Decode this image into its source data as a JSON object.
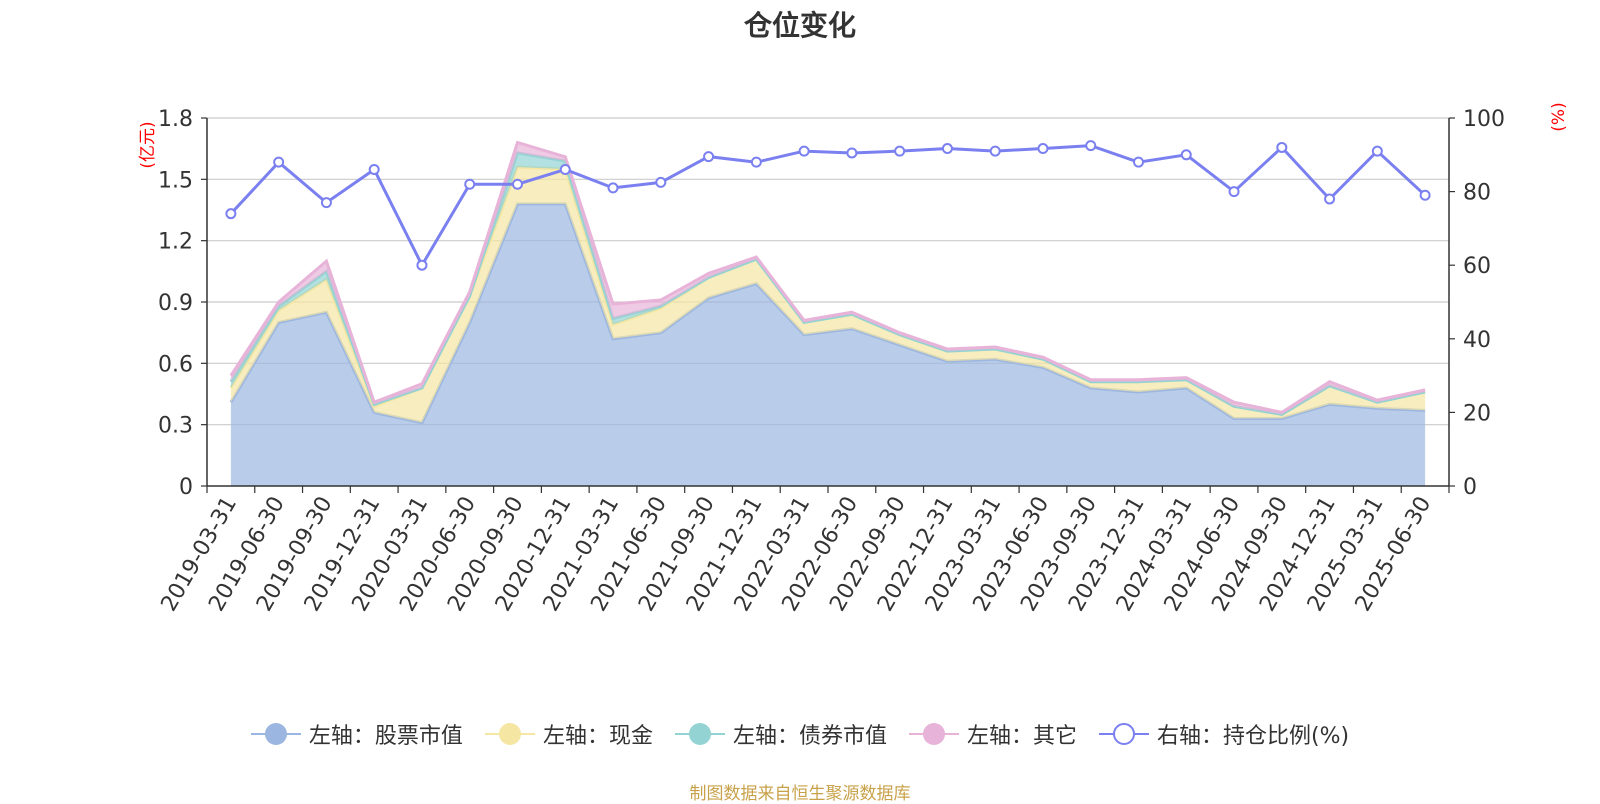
{
  "title": "仓位变化",
  "source_note": "制图数据来自恒生聚源数据库",
  "left_axis_unit": "(亿元)",
  "right_axis_unit": "(%)",
  "colors": {
    "stock": "#9bb6e0",
    "cash": "#f5e6a3",
    "bond": "#93d3d3",
    "other": "#e8b3d8",
    "ratio": "#7b80f0"
  },
  "legend": [
    {
      "key": "stock",
      "label": "左轴：股票市值",
      "icon": "filled-circle-icon"
    },
    {
      "key": "cash",
      "label": "左轴：现金",
      "icon": "filled-circle-icon"
    },
    {
      "key": "bond",
      "label": "左轴：债券市值",
      "icon": "filled-circle-icon"
    },
    {
      "key": "other",
      "label": "左轴：其它",
      "icon": "filled-circle-icon"
    },
    {
      "key": "ratio",
      "label": "右轴：持仓比例(%)",
      "icon": "hollow-circle-icon"
    }
  ],
  "chart_data": {
    "type": "area",
    "title": "仓位变化",
    "categories": [
      "2019-03-31",
      "2019-06-30",
      "2019-09-30",
      "2019-12-31",
      "2020-03-31",
      "2020-06-30",
      "2020-09-30",
      "2020-12-31",
      "2021-03-31",
      "2021-06-30",
      "2021-09-30",
      "2021-12-31",
      "2022-03-31",
      "2022-06-30",
      "2022-09-30",
      "2022-12-31",
      "2023-03-31",
      "2023-06-30",
      "2023-09-30",
      "2023-12-31",
      "2024-03-31",
      "2024-06-30",
      "2024-09-30",
      "2024-12-31",
      "2025-03-31",
      "2025-06-30"
    ],
    "y_left": {
      "label": "(亿元)",
      "min": 0,
      "max": 1.8,
      "ticks": [
        "0",
        "0.3",
        "0.6",
        "0.9",
        "1.2",
        "1.5",
        "1.8"
      ]
    },
    "y_right": {
      "label": "(%)",
      "min": 0,
      "max": 100,
      "ticks": [
        "0",
        "20",
        "40",
        "60",
        "80",
        "100"
      ]
    },
    "stacked": true,
    "grid": true,
    "legend_position": "bottom",
    "series": [
      {
        "name": "左轴：股票市值",
        "axis": "left",
        "type": "area",
        "values": [
          0.41,
          0.8,
          0.85,
          0.36,
          0.31,
          0.8,
          1.38,
          1.38,
          0.72,
          0.75,
          0.92,
          0.99,
          0.74,
          0.77,
          0.69,
          0.61,
          0.62,
          0.58,
          0.48,
          0.46,
          0.48,
          0.33,
          0.33,
          0.4,
          0.38,
          0.37
        ]
      },
      {
        "name": "左轴：现金",
        "axis": "left",
        "type": "area",
        "values": [
          0.07,
          0.06,
          0.16,
          0.03,
          0.17,
          0.13,
          0.18,
          0.17,
          0.07,
          0.12,
          0.1,
          0.12,
          0.06,
          0.07,
          0.05,
          0.05,
          0.05,
          0.04,
          0.03,
          0.05,
          0.04,
          0.06,
          0.02,
          0.09,
          0.03,
          0.09
        ]
      },
      {
        "name": "左轴：债券市值",
        "axis": "left",
        "type": "area",
        "values": [
          0.03,
          0.02,
          0.04,
          0.01,
          0.0,
          0.0,
          0.07,
          0.04,
          0.03,
          0.01,
          0.0,
          0.0,
          0.0,
          0.0,
          0.0,
          0.0,
          0.0,
          0.0,
          0.0,
          0.0,
          0.0,
          0.0,
          0.0,
          0.0,
          0.0,
          0.0
        ]
      },
      {
        "name": "左轴：其它",
        "axis": "left",
        "type": "area",
        "values": [
          0.03,
          0.02,
          0.05,
          0.01,
          0.02,
          0.02,
          0.05,
          0.02,
          0.07,
          0.03,
          0.02,
          0.01,
          0.01,
          0.01,
          0.01,
          0.01,
          0.01,
          0.01,
          0.01,
          0.01,
          0.01,
          0.02,
          0.01,
          0.02,
          0.01,
          0.01
        ]
      },
      {
        "name": "右轴：持仓比例(%)",
        "axis": "right",
        "type": "line",
        "values": [
          74,
          88,
          77,
          86,
          60,
          82,
          82,
          86,
          81,
          82.5,
          89.5,
          88,
          91,
          90.5,
          91,
          91.7,
          91,
          91.7,
          92.5,
          88,
          90,
          80,
          92,
          78,
          91,
          79
        ]
      }
    ]
  }
}
